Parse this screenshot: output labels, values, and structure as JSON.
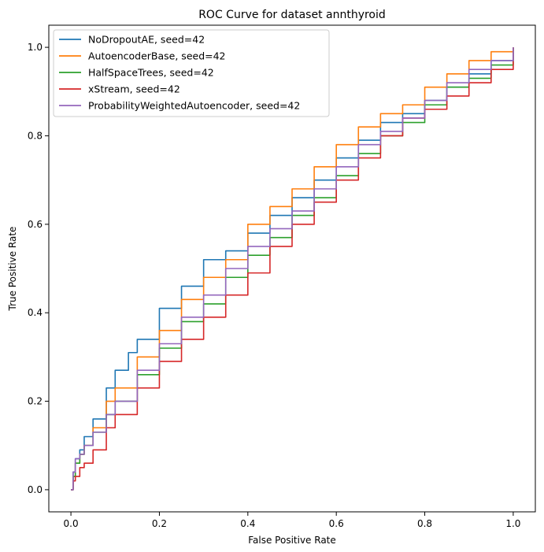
{
  "chart_data": {
    "type": "line",
    "title": "ROC Curve for dataset annthyroid",
    "xlabel": "False Positive Rate",
    "ylabel": "True Positive Rate",
    "xlim": [
      -0.05,
      1.05
    ],
    "ylim": [
      -0.05,
      1.05
    ],
    "xticks": [
      0.0,
      0.2,
      0.4,
      0.6,
      0.8,
      1.0
    ],
    "yticks": [
      0.0,
      0.2,
      0.4,
      0.6,
      0.8,
      1.0
    ],
    "xtick_labels": [
      "0.0",
      "0.2",
      "0.4",
      "0.6",
      "0.8",
      "1.0"
    ],
    "ytick_labels": [
      "0.0",
      "0.2",
      "0.4",
      "0.6",
      "0.8",
      "1.0"
    ],
    "grid": false,
    "legend_position": "top-left",
    "series": [
      {
        "name": "NoDropoutAE, seed=42",
        "color": "#1f77b4",
        "points": [
          [
            0,
            0
          ],
          [
            0.005,
            0.04
          ],
          [
            0.01,
            0.07
          ],
          [
            0.02,
            0.09
          ],
          [
            0.03,
            0.12
          ],
          [
            0.05,
            0.16
          ],
          [
            0.08,
            0.23
          ],
          [
            0.1,
            0.27
          ],
          [
            0.13,
            0.31
          ],
          [
            0.15,
            0.34
          ],
          [
            0.2,
            0.41
          ],
          [
            0.25,
            0.46
          ],
          [
            0.3,
            0.52
          ],
          [
            0.35,
            0.54
          ],
          [
            0.4,
            0.58
          ],
          [
            0.45,
            0.62
          ],
          [
            0.5,
            0.66
          ],
          [
            0.55,
            0.7
          ],
          [
            0.6,
            0.75
          ],
          [
            0.65,
            0.79
          ],
          [
            0.7,
            0.83
          ],
          [
            0.75,
            0.85
          ],
          [
            0.8,
            0.88
          ],
          [
            0.85,
            0.91
          ],
          [
            0.9,
            0.94
          ],
          [
            0.95,
            0.97
          ],
          [
            1.0,
            1.0
          ]
        ]
      },
      {
        "name": "AutoencoderBase, seed=42",
        "color": "#ff7f0e",
        "points": [
          [
            0,
            0
          ],
          [
            0.005,
            0.03
          ],
          [
            0.01,
            0.06
          ],
          [
            0.02,
            0.08
          ],
          [
            0.03,
            0.1
          ],
          [
            0.05,
            0.14
          ],
          [
            0.08,
            0.2
          ],
          [
            0.1,
            0.23
          ],
          [
            0.15,
            0.3
          ],
          [
            0.2,
            0.36
          ],
          [
            0.25,
            0.43
          ],
          [
            0.3,
            0.48
          ],
          [
            0.35,
            0.52
          ],
          [
            0.4,
            0.6
          ],
          [
            0.45,
            0.64
          ],
          [
            0.5,
            0.68
          ],
          [
            0.55,
            0.73
          ],
          [
            0.6,
            0.78
          ],
          [
            0.65,
            0.82
          ],
          [
            0.7,
            0.85
          ],
          [
            0.75,
            0.87
          ],
          [
            0.8,
            0.91
          ],
          [
            0.85,
            0.94
          ],
          [
            0.9,
            0.97
          ],
          [
            0.95,
            0.99
          ],
          [
            1.0,
            1.0
          ]
        ]
      },
      {
        "name": "HalfSpaceTrees, seed=42",
        "color": "#2ca02c",
        "points": [
          [
            0,
            0
          ],
          [
            0.005,
            0.03
          ],
          [
            0.01,
            0.06
          ],
          [
            0.02,
            0.08
          ],
          [
            0.03,
            0.1
          ],
          [
            0.05,
            0.13
          ],
          [
            0.08,
            0.17
          ],
          [
            0.1,
            0.2
          ],
          [
            0.15,
            0.26
          ],
          [
            0.2,
            0.32
          ],
          [
            0.25,
            0.38
          ],
          [
            0.3,
            0.42
          ],
          [
            0.35,
            0.48
          ],
          [
            0.4,
            0.53
          ],
          [
            0.45,
            0.57
          ],
          [
            0.5,
            0.62
          ],
          [
            0.55,
            0.66
          ],
          [
            0.6,
            0.71
          ],
          [
            0.65,
            0.76
          ],
          [
            0.7,
            0.8
          ],
          [
            0.75,
            0.83
          ],
          [
            0.8,
            0.87
          ],
          [
            0.85,
            0.91
          ],
          [
            0.9,
            0.93
          ],
          [
            0.95,
            0.96
          ],
          [
            1.0,
            1.0
          ]
        ]
      },
      {
        "name": "xStream, seed=42",
        "color": "#d62728",
        "points": [
          [
            0,
            0
          ],
          [
            0.005,
            0.02
          ],
          [
            0.01,
            0.03
          ],
          [
            0.02,
            0.05
          ],
          [
            0.03,
            0.06
          ],
          [
            0.05,
            0.09
          ],
          [
            0.08,
            0.14
          ],
          [
            0.1,
            0.17
          ],
          [
            0.15,
            0.23
          ],
          [
            0.2,
            0.29
          ],
          [
            0.25,
            0.34
          ],
          [
            0.3,
            0.39
          ],
          [
            0.35,
            0.44
          ],
          [
            0.4,
            0.49
          ],
          [
            0.45,
            0.55
          ],
          [
            0.5,
            0.6
          ],
          [
            0.55,
            0.65
          ],
          [
            0.6,
            0.7
          ],
          [
            0.65,
            0.75
          ],
          [
            0.7,
            0.8
          ],
          [
            0.75,
            0.84
          ],
          [
            0.8,
            0.86
          ],
          [
            0.85,
            0.89
          ],
          [
            0.9,
            0.92
          ],
          [
            0.95,
            0.95
          ],
          [
            1.0,
            1.0
          ]
        ]
      },
      {
        "name": "ProbabilityWeightedAutoencoder, seed=42",
        "color": "#9467bd",
        "points": [
          [
            0,
            0
          ],
          [
            0.005,
            0.04
          ],
          [
            0.01,
            0.07
          ],
          [
            0.02,
            0.08
          ],
          [
            0.03,
            0.1
          ],
          [
            0.05,
            0.13
          ],
          [
            0.08,
            0.17
          ],
          [
            0.1,
            0.2
          ],
          [
            0.15,
            0.27
          ],
          [
            0.2,
            0.33
          ],
          [
            0.25,
            0.39
          ],
          [
            0.3,
            0.44
          ],
          [
            0.35,
            0.5
          ],
          [
            0.4,
            0.55
          ],
          [
            0.45,
            0.59
          ],
          [
            0.5,
            0.63
          ],
          [
            0.55,
            0.68
          ],
          [
            0.6,
            0.73
          ],
          [
            0.65,
            0.78
          ],
          [
            0.7,
            0.81
          ],
          [
            0.75,
            0.84
          ],
          [
            0.8,
            0.88
          ],
          [
            0.85,
            0.92
          ],
          [
            0.9,
            0.95
          ],
          [
            0.95,
            0.97
          ],
          [
            1.0,
            1.0
          ]
        ]
      }
    ]
  }
}
